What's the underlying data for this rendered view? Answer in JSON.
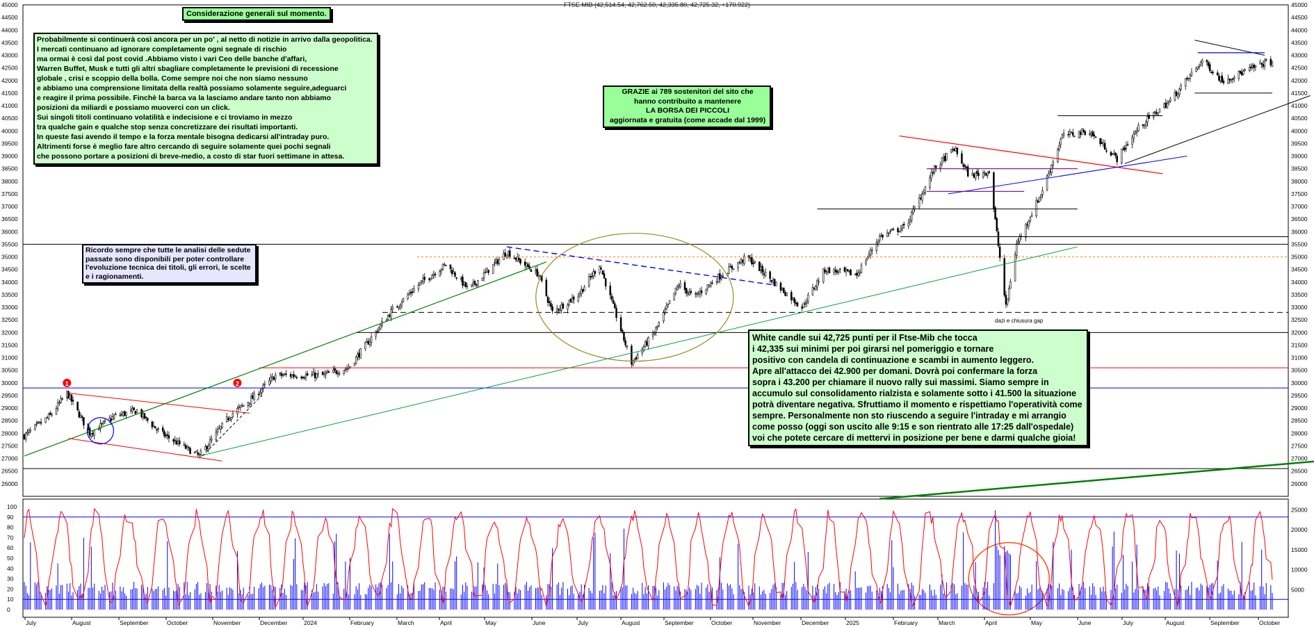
{
  "chart_title": "FTSE MIB (42,514.54, 42,762.50, 42,335.80, 42,725.32, +170.922)",
  "notes": {
    "header": "Considerazione generali sul momento.",
    "general": [
      "Probabilmente si continuerà così ancora per un po' , al netto di notizie in arrivo dalla geopolitica.",
      "I mercati continuano ad ignorare completamente ogni segnale di rischio",
      "ma ormai è così dal post covid .Abbiamo visto  i vari Ceo delle banche d'affari,",
      "Warren Buffet, Musk e tutti gli altri sbagliare completamente  le previsioni di recessione",
      "globale , crisi e scoppio della bolla. Come sempre noi che non siamo nessuno",
      "e abbiamo una comprensione limitata della realtà possiamo solamente seguire,adeguarci",
      "e reagire il prima possibile. Finchè la barca va la lasciamo andare tanto non abbiamo",
      "posizioni da miliardi e possiamo muoverci con un click.",
      "Sui singoli titoli continuano volatilità e indecisione e ci troviamo in mezzo",
      "tra qualche gain e qualche stop senza concretizzare dei risultati importanti.",
      "In queste fasi avendo il tempo e la forza mentale bisogna dedicarsi all'intraday puro.",
      "Altrimenti forse è meglio fare altro cercando di seguire solamente quei pochi segnali",
      "che possono portare a posizioni di breve-medio, a costo di star fuori settimane in attesa."
    ],
    "reminder": [
      "Ricordo sempre che tutte le analisi delle sedute",
      "passate sono disponibili per poter controllare",
      " l'evoluzione tecnica dei titoli, gli errori, le scelte",
      "e i ragionamenti."
    ],
    "thanks": [
      "GRAZIE ai 789 sostenitori del sito che",
      "hanno contribuito a mantenere",
      "LA BORSA DEI PICCOLI",
      " aggiornata e gratuita (come accade dal 1999)"
    ],
    "analysis": [
      "White candle sui 42,725 punti per il Ftse-Mib che tocca",
      " i 42,335 sui minimi per poi girarsi nel pomeriggio e tornare",
      "positivo con candela di continuazione e scambi in aumento leggero.",
      "Apre all'attacco dei 42.900 per domani. Dovrà poi confermare la forza",
      "sopra i 43.200 per chiamare il nuovo rally sui massimi.  Siamo sempre in",
      "accumulo sul consolidamento rialzista e solamente sotto i 41.500 la situazione",
      "potrà diventare negativa. Sfruttiamo il momento e rispettiamo l'operatività come",
      "sempre.  Personalmente non sto riuscendo a seguire l'intraday e mi arrangio",
      "come posso (oggi son uscito alle 9:15 e son rientrato alle 17:25 dall'ospedale)",
      "voi che potete cercare di mettervi in posizione per bene e darmi qualche gioia!"
    ],
    "annotation_label": "dazi e chiusura gap"
  },
  "colors": {
    "note_green": "#ccffcc",
    "note_green_strong": "#99ff99",
    "note_lavender": "#e6e6ff",
    "candle_up": "#ffffff",
    "candle_down": "#000000",
    "oscillator": "#ff0000",
    "volume": "#0000ff",
    "trend_red": "#ff0000",
    "trend_green": "#008000",
    "trend_blue": "#0000ff"
  },
  "chart_data": {
    "type": "candlestick",
    "title": "FTSE MIB (42,514.54, 42,762.50, 42,335.80, 42,725.32, +170.922)",
    "last_bar": {
      "open": 42514.54,
      "high": 42762.5,
      "low": 42335.8,
      "close": 42725.32,
      "change": 170.922
    },
    "price_axis": {
      "min": 25500,
      "max": 45000,
      "ticks": [
        "45000",
        "44500",
        "44000",
        "43500",
        "43000",
        "42500",
        "42000",
        "41500",
        "41000",
        "40500",
        "40000",
        "39500",
        "39000",
        "38500",
        "38000",
        "37500",
        "37000",
        "36500",
        "36000",
        "35500",
        "35000",
        "34500",
        "34000",
        "33500",
        "33000",
        "32500",
        "32000",
        "31500",
        "31000",
        "30500",
        "30000",
        "29500",
        "29000",
        "28500",
        "28000",
        "27500",
        "27000",
        "26500",
        "26000"
      ]
    },
    "oscillator_axis": {
      "min": 0,
      "max": 100,
      "ticks": [
        "100",
        "90",
        "80",
        "70",
        "60",
        "50",
        "40",
        "30",
        "20",
        "10",
        "0"
      ],
      "levels": [
        10,
        90
      ]
    },
    "volume_axis": {
      "min": 0,
      "max": 27000,
      "ticks": [
        "25000",
        "20000",
        "15000",
        "10000",
        "5000"
      ]
    },
    "x_months": [
      "July",
      "August",
      "September",
      "October",
      "November",
      "December",
      "2024",
      "February",
      "March",
      "April",
      "May",
      "June",
      "July",
      "August",
      "September",
      "October",
      "November",
      "December",
      "2025",
      "February",
      "March",
      "April",
      "May",
      "June",
      "July",
      "August",
      "September",
      "October"
    ],
    "close_path": [
      {
        "date": "2023-07-03",
        "close": 27900
      },
      {
        "date": "2023-07-20",
        "close": 28700
      },
      {
        "date": "2023-07-31",
        "close": 29600
      },
      {
        "date": "2023-08-15",
        "close": 28000
      },
      {
        "date": "2023-09-01",
        "close": 28700
      },
      {
        "date": "2023-09-15",
        "close": 28900
      },
      {
        "date": "2023-10-01",
        "close": 28000
      },
      {
        "date": "2023-10-26",
        "close": 27100
      },
      {
        "date": "2023-11-15",
        "close": 28700
      },
      {
        "date": "2023-11-30",
        "close": 29400
      },
      {
        "date": "2023-12-15",
        "close": 30300
      },
      {
        "date": "2024-01-15",
        "close": 30300
      },
      {
        "date": "2024-02-01",
        "close": 30600
      },
      {
        "date": "2024-03-01",
        "close": 32900
      },
      {
        "date": "2024-03-20",
        "close": 34000
      },
      {
        "date": "2024-04-05",
        "close": 34700
      },
      {
        "date": "2024-04-20",
        "close": 33700
      },
      {
        "date": "2024-05-15",
        "close": 35200
      },
      {
        "date": "2024-06-05",
        "close": 34300
      },
      {
        "date": "2024-06-14",
        "close": 32800
      },
      {
        "date": "2024-07-01",
        "close": 33500
      },
      {
        "date": "2024-07-15",
        "close": 34700
      },
      {
        "date": "2024-08-05",
        "close": 30800
      },
      {
        "date": "2024-08-20",
        "close": 32000
      },
      {
        "date": "2024-09-05",
        "close": 33900
      },
      {
        "date": "2024-09-15",
        "close": 33400
      },
      {
        "date": "2024-10-01",
        "close": 34200
      },
      {
        "date": "2024-10-20",
        "close": 35000
      },
      {
        "date": "2024-11-10",
        "close": 33800
      },
      {
        "date": "2024-11-25",
        "close": 33000
      },
      {
        "date": "2024-12-10",
        "close": 34500
      },
      {
        "date": "2024-12-31",
        "close": 34300
      },
      {
        "date": "2025-01-15",
        "close": 35800
      },
      {
        "date": "2025-02-01",
        "close": 36200
      },
      {
        "date": "2025-02-20",
        "close": 38500
      },
      {
        "date": "2025-03-05",
        "close": 39300
      },
      {
        "date": "2025-03-15",
        "close": 38200
      },
      {
        "date": "2025-03-28",
        "close": 38400
      },
      {
        "date": "2025-04-08",
        "close": 33000
      },
      {
        "date": "2025-04-15",
        "close": 35500
      },
      {
        "date": "2025-05-01",
        "close": 37500
      },
      {
        "date": "2025-05-15",
        "close": 39800
      },
      {
        "date": "2025-06-01",
        "close": 40000
      },
      {
        "date": "2025-06-20",
        "close": 38900
      },
      {
        "date": "2025-07-05",
        "close": 40200
      },
      {
        "date": "2025-07-25",
        "close": 41200
      },
      {
        "date": "2025-08-15",
        "close": 42800
      },
      {
        "date": "2025-08-28",
        "close": 42000
      },
      {
        "date": "2025-09-10",
        "close": 42300
      },
      {
        "date": "2025-09-26",
        "close": 42725
      }
    ],
    "horizontal_levels": [
      35800,
      35500,
      35000,
      32800,
      32000,
      30600,
      29800,
      26600
    ],
    "markers": [
      "1",
      "2"
    ]
  }
}
